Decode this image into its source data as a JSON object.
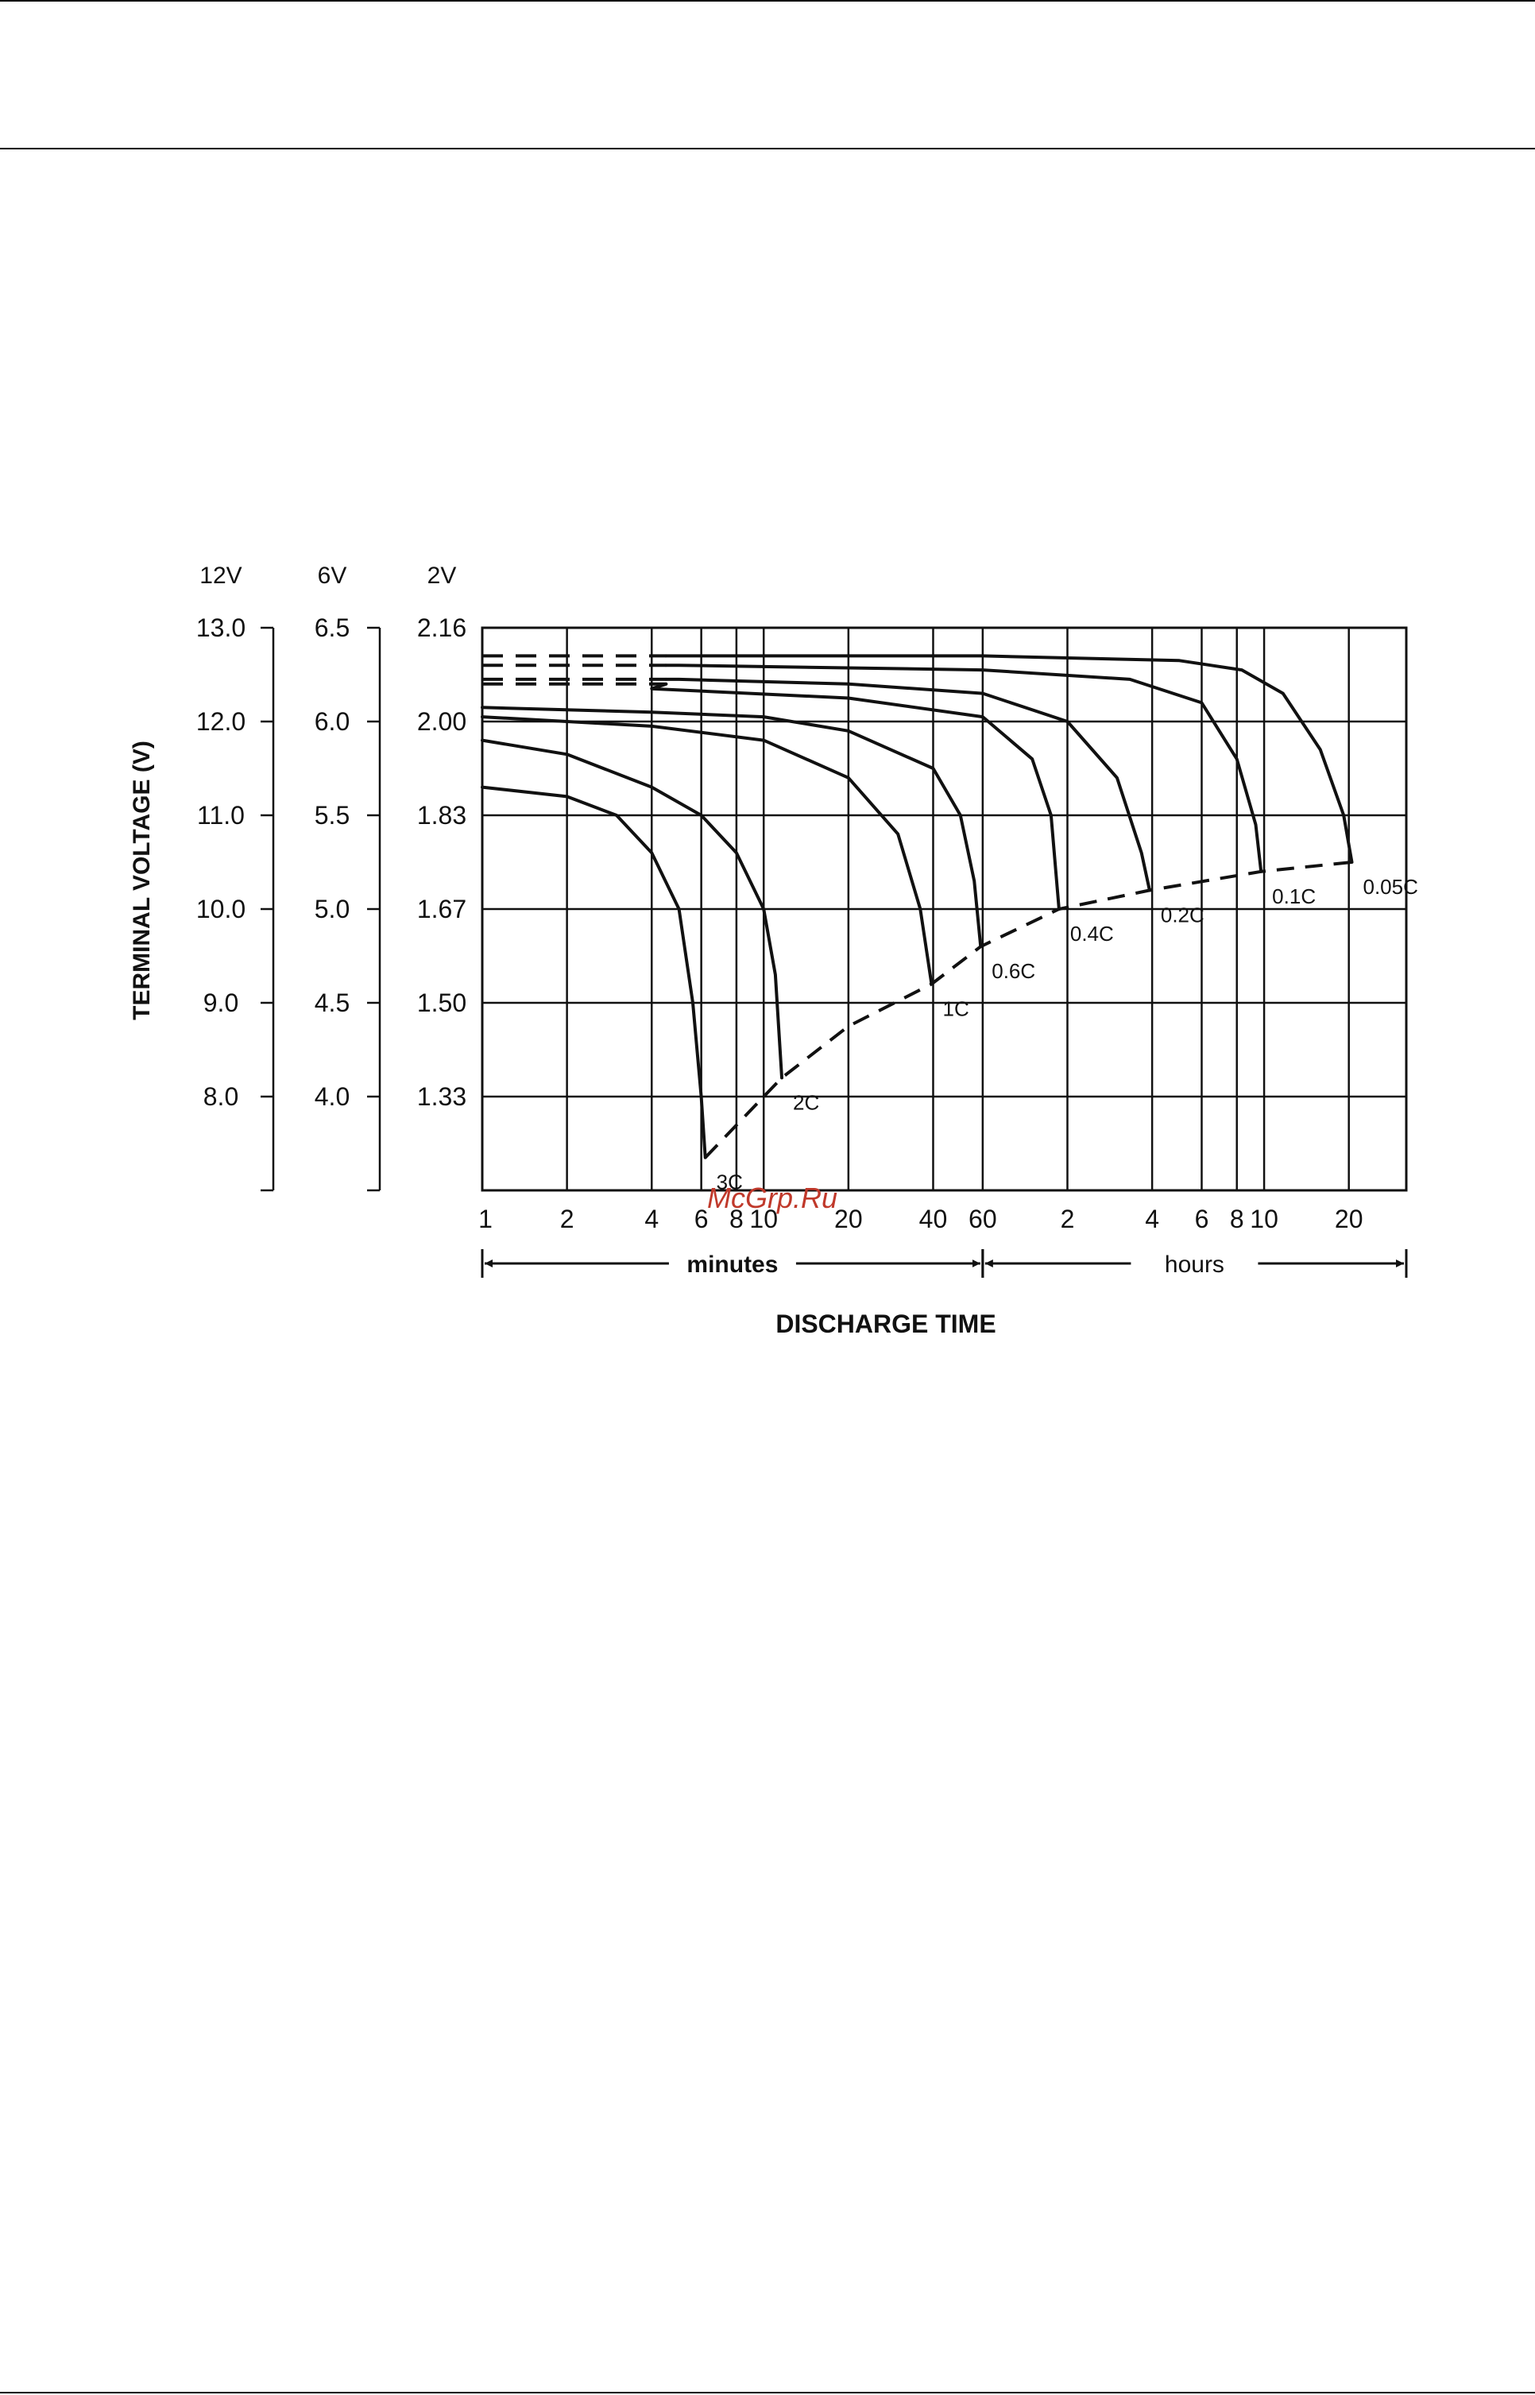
{
  "watermark": "McGrp.Ru",
  "colors": {
    "ink": "#111111",
    "watermark": "#c0392b",
    "background": "#ffffff"
  },
  "chart_data": {
    "type": "line",
    "title": "",
    "xlabel": "DISCHARGE TIME",
    "ylabel": "TERMINAL VOLTAGE (V)",
    "x_scale": "log",
    "x_unit": "minutes",
    "x_range_minutes": [
      1,
      1920
    ],
    "x_ticks": [
      {
        "label": "1",
        "minutes": 1
      },
      {
        "label": "2",
        "minutes": 2
      },
      {
        "label": "4",
        "minutes": 4
      },
      {
        "label": "6",
        "minutes": 6
      },
      {
        "label": "8",
        "minutes": 8
      },
      {
        "label": "10",
        "minutes": 10
      },
      {
        "label": "20",
        "minutes": 20
      },
      {
        "label": "40",
        "minutes": 40
      },
      {
        "label": "60",
        "minutes": 60
      },
      {
        "label": "2",
        "minutes": 120
      },
      {
        "label": "4",
        "minutes": 240
      },
      {
        "label": "6",
        "minutes": 360
      },
      {
        "label": "8",
        "minutes": 480
      },
      {
        "label": "10",
        "minutes": 600
      },
      {
        "label": "20",
        "minutes": 1200
      }
    ],
    "time_ranges": [
      {
        "label": "minutes",
        "from_minutes": 1,
        "to_minutes": 60
      },
      {
        "label": "hours",
        "from_minutes": 60,
        "to_minutes": 1920
      }
    ],
    "y_axes": [
      {
        "header": "12V",
        "ticks": [
          "13.0",
          "12.0",
          "11.0",
          "10.0",
          "9.0",
          "8.0"
        ]
      },
      {
        "header": "6V",
        "ticks": [
          "6.5",
          "6.0",
          "5.5",
          "5.0",
          "4.5",
          "4.0"
        ]
      },
      {
        "header": "2V",
        "ticks": [
          "2.16",
          "2.00",
          "1.83",
          "1.67",
          "1.50",
          "1.33"
        ]
      }
    ],
    "y_unit": "12V scale volts",
    "y_range": [
      7.0,
      13.0
    ],
    "grid": true,
    "series": [
      {
        "name": "3C",
        "points": [
          [
            1,
            11.3
          ],
          [
            2,
            11.2
          ],
          [
            3,
            11.0
          ],
          [
            4,
            10.6
          ],
          [
            5,
            10.0
          ],
          [
            5.6,
            9.0
          ],
          [
            6,
            8.0
          ],
          [
            6.2,
            7.35
          ]
        ]
      },
      {
        "name": "2C",
        "points": [
          [
            1,
            11.8
          ],
          [
            2,
            11.65
          ],
          [
            4,
            11.3
          ],
          [
            6,
            11.0
          ],
          [
            8,
            10.6
          ],
          [
            10,
            10.0
          ],
          [
            11,
            9.3
          ],
          [
            11.6,
            8.2
          ]
        ]
      },
      {
        "name": "1C",
        "points": [
          [
            1,
            12.05
          ],
          [
            4,
            11.95
          ],
          [
            10,
            11.8
          ],
          [
            20,
            11.4
          ],
          [
            30,
            10.8
          ],
          [
            36,
            10.0
          ],
          [
            39.5,
            9.2
          ]
        ]
      },
      {
        "name": "0.6C",
        "points": [
          [
            1,
            12.15
          ],
          [
            4,
            12.1
          ],
          [
            10,
            12.05
          ],
          [
            20,
            11.9
          ],
          [
            40,
            11.5
          ],
          [
            50,
            11.0
          ],
          [
            56,
            10.3
          ],
          [
            59,
            9.6
          ]
        ]
      },
      {
        "name": "0.4C",
        "points": [
          [
            1.6,
            12.4
          ],
          [
            4,
            12.35
          ],
          [
            20,
            12.25
          ],
          [
            60,
            12.05
          ],
          [
            90,
            11.6
          ],
          [
            105,
            11.0
          ],
          [
            112,
            10.0
          ]
        ]
      },
      {
        "name": "0.2C",
        "points": [
          [
            1.6,
            12.45
          ],
          [
            5,
            12.45
          ],
          [
            20,
            12.4
          ],
          [
            60,
            12.3
          ],
          [
            120,
            12.0
          ],
          [
            180,
            11.4
          ],
          [
            220,
            10.6
          ],
          [
            235,
            10.2
          ]
        ]
      },
      {
        "name": "0.1C",
        "points": [
          [
            1.6,
            12.6
          ],
          [
            5,
            12.6
          ],
          [
            60,
            12.55
          ],
          [
            200,
            12.45
          ],
          [
            360,
            12.2
          ],
          [
            480,
            11.6
          ],
          [
            560,
            10.9
          ],
          [
            585,
            10.4
          ]
        ]
      },
      {
        "name": "0.05C",
        "points": [
          [
            1.6,
            12.7
          ],
          [
            5,
            12.7
          ],
          [
            60,
            12.7
          ],
          [
            300,
            12.65
          ],
          [
            500,
            12.55
          ],
          [
            700,
            12.3
          ],
          [
            950,
            11.7
          ],
          [
            1150,
            11.0
          ],
          [
            1230,
            10.5
          ]
        ]
      }
    ],
    "cutoff_curve": {
      "style": "dashed",
      "points": [
        [
          6.2,
          7.35
        ],
        [
          11.6,
          8.2
        ],
        [
          20,
          8.75
        ],
        [
          39.5,
          9.2
        ],
        [
          59,
          9.6
        ],
        [
          112,
          10.0
        ],
        [
          235,
          10.2
        ],
        [
          585,
          10.4
        ],
        [
          1230,
          10.5
        ]
      ]
    }
  }
}
